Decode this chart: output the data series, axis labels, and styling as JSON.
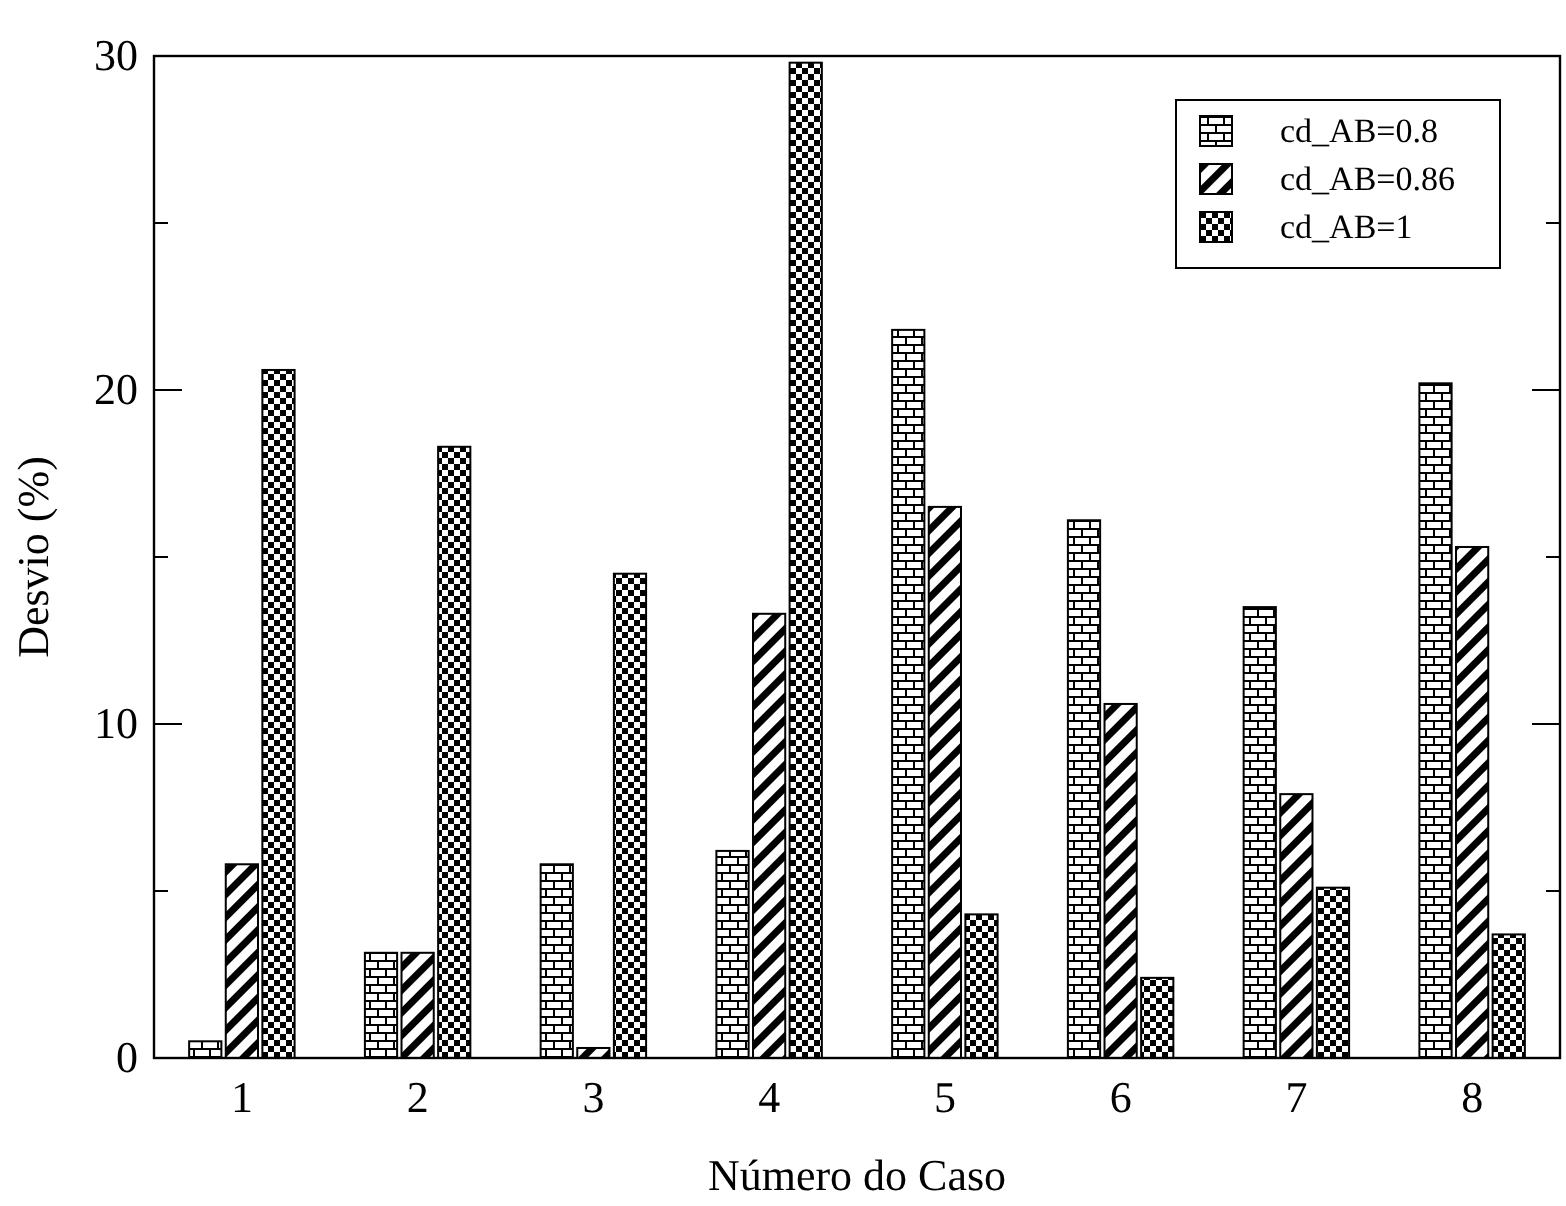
{
  "chart_data": {
    "type": "bar",
    "xlabel": "Número do Caso",
    "ylabel": "Desvio (%)",
    "categories": [
      "1",
      "2",
      "3",
      "4",
      "5",
      "6",
      "7",
      "8"
    ],
    "series": [
      {
        "name": "cd_AB=0.8",
        "color": "#000000",
        "values": [
          0.5,
          3.15,
          5.8,
          6.2,
          21.8,
          16.1,
          13.5,
          20.2
        ]
      },
      {
        "name": "cd_AB=0.86",
        "color": "#000000",
        "values": [
          5.8,
          3.15,
          0.3,
          13.3,
          16.5,
          10.6,
          7.9,
          15.3
        ]
      },
      {
        "name": "cd_AB=1",
        "color": "#000000",
        "values": [
          20.6,
          18.3,
          14.5,
          29.8,
          4.3,
          2.4,
          5.1,
          3.7
        ]
      }
    ],
    "ylim": [
      0,
      30
    ],
    "yticks": [
      0,
      {
        "value": 5,
        "label": null
      },
      10,
      {
        "value": 15,
        "label": null
      },
      20,
      {
        "value": 25,
        "label": null
      },
      30
    ],
    "grid": false,
    "legend": "top right"
  }
}
